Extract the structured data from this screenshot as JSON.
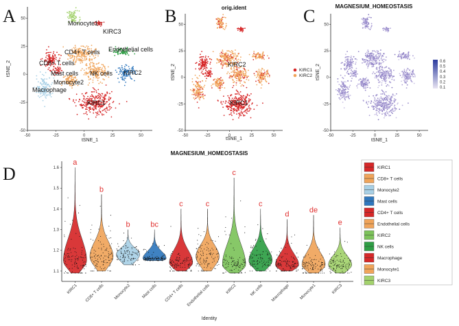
{
  "figure": {
    "panel_labels": [
      "A",
      "B",
      "C",
      "D"
    ]
  },
  "chart_data": [
    {
      "panel": "A",
      "type": "scatter",
      "title": "",
      "xlabel": "tSNE_1",
      "ylabel": "tSNE_2",
      "xlim": [
        -50,
        60
      ],
      "ylim": [
        -50,
        60
      ],
      "xticks": [
        "-50",
        "-25",
        "0",
        "25",
        "50"
      ],
      "yticks": [
        "-50",
        "-25",
        "0",
        "25",
        "50"
      ],
      "clusters": [
        {
          "name": "Monocyte1",
          "color": "#a3d26d",
          "center": [
            -10,
            51
          ],
          "spread": [
            5,
            5
          ]
        },
        {
          "name": "KIRC3",
          "color": "#c62828",
          "center": [
            13,
            45
          ],
          "spread": [
            3,
            2
          ]
        },
        {
          "name": "CD4+ T cells",
          "color": "#f0a45a",
          "center": [
            -2,
            18
          ],
          "spread": [
            11,
            7
          ]
        },
        {
          "name": "Endothelial cells",
          "color": "#2e9e44",
          "center": [
            33,
            20
          ],
          "spread": [
            8,
            3
          ]
        },
        {
          "name": "CD8+ T cells",
          "color": "#d62728",
          "center": [
            -30,
            13
          ],
          "spread": [
            6,
            7
          ]
        },
        {
          "name": "Mast cells",
          "color": "#d62728",
          "center": [
            -24,
            3
          ],
          "spread": [
            3,
            3
          ]
        },
        {
          "name": "NK cells",
          "color": "#f0a45a",
          "center": [
            10,
            2
          ],
          "spread": [
            10,
            7
          ]
        },
        {
          "name": "KIRC2",
          "color": "#2f77bd",
          "center": [
            37,
            1
          ],
          "spread": [
            7,
            6
          ]
        },
        {
          "name": "Monocyte2",
          "color": "#f0a45a",
          "center": [
            -12,
            -5
          ],
          "spread": [
            6,
            5
          ]
        },
        {
          "name": "Macrophage",
          "color": "#a8d0e6",
          "center": [
            -35,
            -12
          ],
          "spread": [
            6,
            9
          ]
        },
        {
          "name": "KIRC1",
          "color": "#d62728",
          "center": [
            10,
            -26
          ],
          "spread": [
            14,
            9
          ]
        }
      ],
      "labels": [
        "Monocyte1",
        "KIRC3",
        "CD4+ T cells",
        "Endothelial cells",
        "CD8+ T cells",
        "Mast cells",
        "NK cells",
        "KIRC2",
        "Monocyte2",
        "Macrophage",
        "KIRC1"
      ]
    },
    {
      "panel": "B",
      "type": "scatter",
      "title": "orig.ident",
      "xlabel": "tSNE_1",
      "ylabel": "tSNE_2",
      "xlim": [
        -50,
        60
      ],
      "ylim": [
        -50,
        60
      ],
      "xticks": [
        "-50",
        "-25",
        "0",
        "25",
        "50"
      ],
      "yticks": [
        "-50",
        "-25",
        "0",
        "25",
        "50"
      ],
      "labels": [
        "KIRC2",
        "KIRC1"
      ],
      "legend": [
        {
          "name": "KIRC1",
          "color": "#d62728"
        },
        {
          "name": "KIRC2",
          "color": "#f0a45a"
        }
      ]
    },
    {
      "panel": "C",
      "type": "scatter",
      "title": "MAGNESIUM_HOMEOSTASIS",
      "xlabel": "tSNE_1",
      "ylabel": "tSNE_2",
      "xlim": [
        -50,
        60
      ],
      "ylim": [
        -50,
        60
      ],
      "xticks": [
        "-50",
        "-25",
        "0",
        "25",
        "50"
      ],
      "yticks": [
        "-50",
        "-25",
        "0",
        "25",
        "50"
      ],
      "colorbar": {
        "ticks": [
          "0.6",
          "0.5",
          "0.4",
          "0.3",
          "0.2",
          "0.1"
        ],
        "low": "#e8e4f2",
        "high": "#2b3b9e"
      }
    },
    {
      "panel": "D",
      "type": "violin",
      "title": "MAGNESIUM_HOMEOSTASIS",
      "xlabel": "Identity",
      "ylabel": "",
      "ylim": [
        1.05,
        1.63
      ],
      "yticks": [
        "1.6",
        "1.5",
        "1.4",
        "1.3",
        "1.2",
        "1.1"
      ],
      "categories": [
        "KIRC1",
        "CD8+ T cells",
        "Monocyte2",
        "Mast cells",
        "CD4+ T cells",
        "Endothelial cells",
        "KIRC2",
        "NK cells",
        "Macrophage",
        "Monocyte1",
        "KIRC3"
      ],
      "colors": [
        "#d62728",
        "#f0a45a",
        "#a8d0e6",
        "#2f77bd",
        "#d62728",
        "#f0a45a",
        "#7dc35b",
        "#2e9e44",
        "#d62728",
        "#f0a45a",
        "#a3d26d"
      ],
      "ymin": [
        1.09,
        1.1,
        1.13,
        1.15,
        1.1,
        1.1,
        1.09,
        1.1,
        1.1,
        1.09,
        1.09
      ],
      "ymax": [
        1.6,
        1.47,
        1.3,
        1.3,
        1.4,
        1.4,
        1.55,
        1.4,
        1.35,
        1.37,
        1.31
      ],
      "modes": [
        1.15,
        1.17,
        1.18,
        1.16,
        1.14,
        1.17,
        1.13,
        1.15,
        1.13,
        1.13,
        1.13
      ],
      "significance": [
        "a",
        "b",
        "b",
        "bc",
        "c",
        "c",
        "c",
        "c",
        "d",
        "de",
        "e"
      ],
      "legend": [
        "KIRC1",
        "CD8+ T cells",
        "Monocyte2",
        "Mast cells",
        "CD4+ T cells",
        "Endothelial cells",
        "KIRC2",
        "NK cells",
        "Macrophage",
        "Monocyte1",
        "KIRC3"
      ]
    }
  ]
}
